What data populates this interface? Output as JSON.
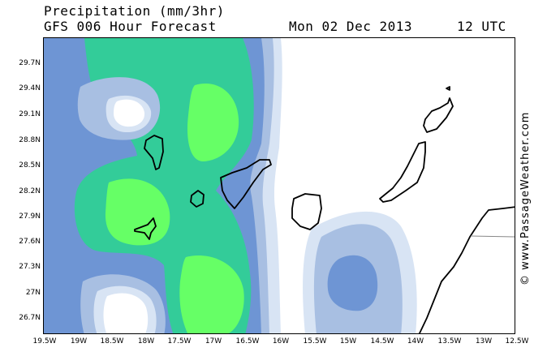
{
  "header": {
    "title": "Precipitation (mm/3hr)",
    "subtitle": "GFS 006 Hour Forecast",
    "date": "Mon 02 Dec 2013",
    "time": "12 UTC"
  },
  "axes": {
    "lat_labels": [
      "29.7N",
      "29.4N",
      "29.1N",
      "28.8N",
      "28.5N",
      "28.2N",
      "27.9N",
      "27.6N",
      "27.3N",
      "27N",
      "26.7N"
    ],
    "lon_labels": [
      "19.5W",
      "19W",
      "18.5W",
      "18W",
      "17.5W",
      "17W",
      "16.5W",
      "16W",
      "15.5W",
      "15W",
      "14.5W",
      "14W",
      "13.5W",
      "13W",
      "12.5W"
    ]
  },
  "credit": "© www.PassageWeather.com",
  "colors": {
    "level1": "#d8e4f4",
    "level2": "#a8bfe2",
    "level3": "#6e95d4",
    "level4": "#33cc99",
    "level5": "#66ff66",
    "land_outline": "#000000"
  }
}
